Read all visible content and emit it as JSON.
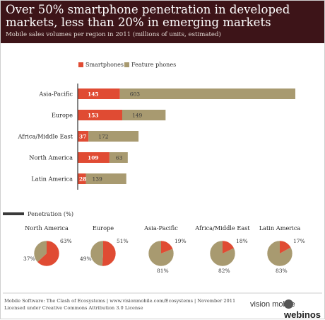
{
  "header": {
    "title": "Over 50% smartphone penetration in developed markets, less than 20% in emerging markets",
    "subtitle": "Mobile sales volumes per region in 2011 (millions of units, estimated)"
  },
  "colors": {
    "smartphones": "#e04b33",
    "feature_phones": "#a89a70",
    "header_bg": "#3d1418"
  },
  "chart_data": [
    {
      "type": "bar",
      "orientation": "horizontal",
      "stacked": true,
      "categories": [
        "Asia-Pacific",
        "Europe",
        "Africa/Middle East",
        "North America",
        "Latin America"
      ],
      "series": [
        {
          "name": "Smartphones",
          "values": [
            145,
            153,
            37,
            109,
            28
          ]
        },
        {
          "name": "Feature phones",
          "values": [
            603,
            149,
            172,
            63,
            139
          ]
        }
      ],
      "legend_position": "top",
      "grid": false
    },
    {
      "type": "pie",
      "title": "Penetration (%)",
      "charts": [
        {
          "region": "North America",
          "smartphones": 63,
          "feature_phones": 37
        },
        {
          "region": "Europe",
          "smartphones": 51,
          "feature_phones": 49
        },
        {
          "region": "Asia-Pacific",
          "smartphones": 19,
          "feature_phones": 81
        },
        {
          "region": "Africa/Middle East",
          "smartphones": 18,
          "feature_phones": 82
        },
        {
          "region": "Latin America",
          "smartphones": 17,
          "feature_phones": 83
        }
      ]
    }
  ],
  "footer": {
    "line1": "Mobile Software: The Clash of Ecosystems | www.visionmobile.com/Ecosystems | November 2011",
    "line2": "Licensed under Creative Commons Attribution 3.0 License",
    "logo_left": "vision mobile",
    "logo_right": "webinos"
  }
}
